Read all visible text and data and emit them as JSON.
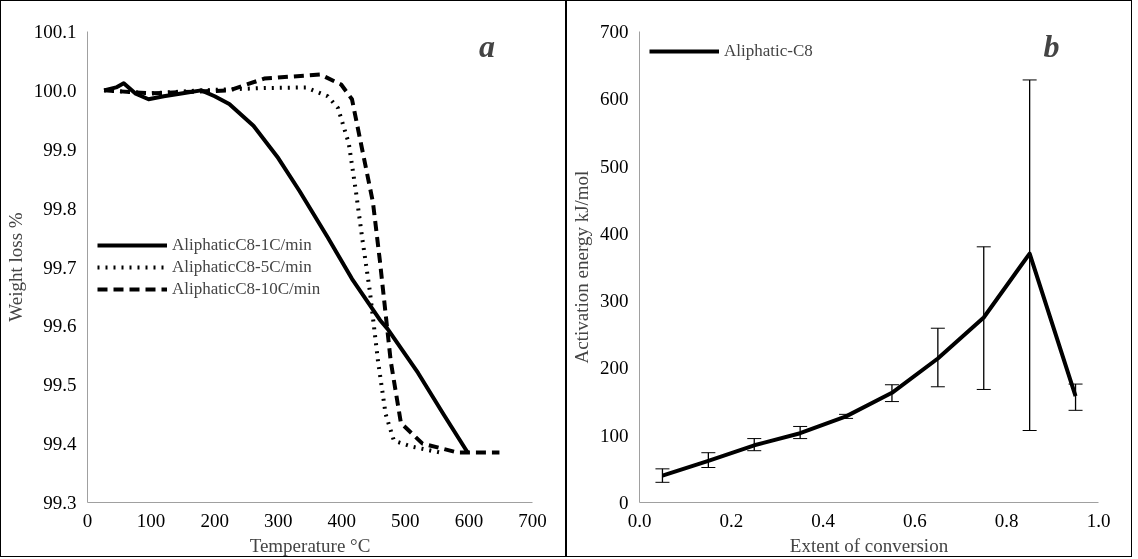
{
  "chart_data": [
    {
      "type": "line",
      "xlabel": "Temperature °C",
      "ylabel": "Weight loss %",
      "annotations": [
        "a"
      ],
      "xlim": [
        0,
        700
      ],
      "xticks": [
        0,
        100,
        200,
        300,
        400,
        500,
        600,
        700
      ],
      "ylim": [
        99.3,
        100.1
      ],
      "yticks": [
        99.3,
        99.4,
        99.5,
        99.6,
        99.7,
        99.8,
        99.9,
        {
          "value": 100.0,
          "label": "100.0"
        },
        100.1
      ],
      "grid": false,
      "legend": "left",
      "marker": "none",
      "series": [
        {
          "name": "AliphaticC8-1C/min",
          "color": "#000000",
          "line_style": "solid",
          "x": [
            26,
            45,
            57,
            75,
            96,
            120,
            150,
            179,
            200,
            223,
            261,
            300,
            333,
            378,
            416,
            460,
            472,
            520,
            560,
            598
          ],
          "values": [
            100.0,
            100.005,
            100.012,
            99.995,
            99.985,
            99.99,
            99.995,
            100.0,
            99.99,
            99.977,
            99.94,
            99.885,
            99.83,
            99.75,
            99.68,
            99.61,
            99.595,
            99.52,
            99.45,
            99.385
          ]
        },
        {
          "name": "AliphaticC8-5C/min",
          "color": "#000000",
          "line_style": "dotted",
          "x": [
            26,
            100,
            180,
            278,
            344,
            378,
            394,
            411,
            422,
            432,
            444,
            457,
            469,
            482,
            510,
            554
          ],
          "values": [
            100.0,
            99.995,
            100.0,
            100.004,
            100.005,
            99.99,
            99.97,
            99.91,
            99.83,
            99.75,
            99.66,
            99.54,
            99.45,
            99.405,
            99.395,
            99.385
          ]
        },
        {
          "name": "AliphaticC8-10C/min",
          "color": "#000000",
          "line_style": "dashed",
          "x": [
            26,
            100,
            223,
            278,
            366,
            399,
            416,
            432,
            449,
            460,
            469,
            477,
            493,
            527,
            582,
            648
          ],
          "values": [
            100.0,
            99.995,
            100.0,
            100.02,
            100.027,
            100.01,
            99.985,
            99.9,
            99.81,
            99.71,
            99.62,
            99.54,
            99.435,
            99.4,
            99.385,
            99.385
          ]
        }
      ]
    },
    {
      "type": "line",
      "xlabel": "Extent of conversion",
      "ylabel": "Activation energy kJ/mol",
      "annotations": [
        "b"
      ],
      "xlim": [
        0,
        1
      ],
      "xticks": [
        {
          "value": 0,
          "label": "0.0"
        },
        0.2,
        0.4,
        0.6,
        0.8,
        {
          "value": 1,
          "label": "1.0"
        }
      ],
      "ylim": [
        0,
        700
      ],
      "yticks": [
        0,
        100,
        200,
        300,
        400,
        500,
        600,
        700
      ],
      "grid": false,
      "legend": "top left",
      "marker": "none",
      "x": [
        0.05,
        0.15,
        0.25,
        0.35,
        0.45,
        0.55,
        0.65,
        0.75,
        0.85,
        0.95
      ],
      "series": [
        {
          "name": "Aliphatic-C8",
          "color": "#000000",
          "line_style": "solid",
          "values": [
            40,
            62,
            85,
            103,
            128,
            163,
            214,
            275,
            370,
            158
          ],
          "errors": [
            [
              30,
              50
            ],
            [
              52,
              74
            ],
            [
              77,
              95
            ],
            [
              95,
              113
            ],
            [
              125,
              131
            ],
            [
              150,
              175
            ],
            [
              172,
              259
            ],
            [
              168,
              380
            ],
            [
              107,
              628
            ],
            [
              137,
              176
            ]
          ]
        }
      ]
    }
  ]
}
